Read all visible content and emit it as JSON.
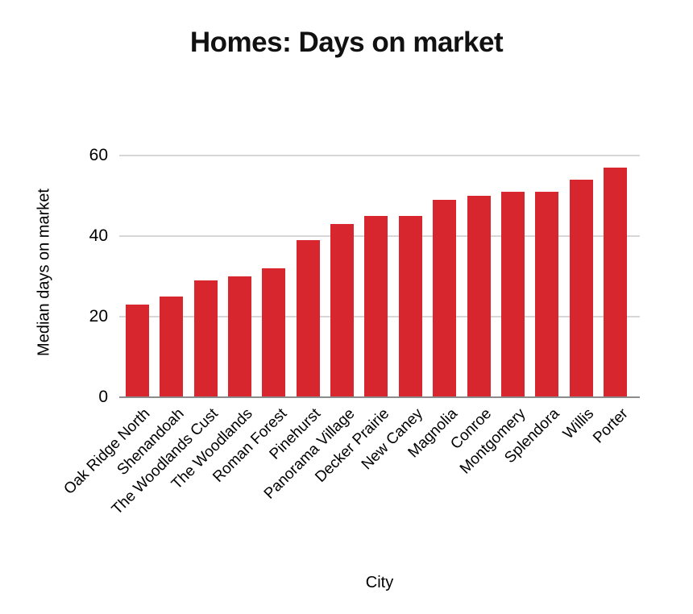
{
  "chart_data": {
    "type": "bar",
    "title": "Homes: Days on market",
    "xlabel": "City",
    "ylabel": "Median days on market",
    "categories": [
      "Oak Ridge North",
      "Shenandoah",
      "The Woodlands Cust",
      "The Woodlands",
      "Roman Forest",
      "Pinehurst",
      "Panorama Village",
      "Decker Prairie",
      "New Caney",
      "Magnolia",
      "Conroe",
      "Montgomery",
      "Splendora",
      "Willis",
      "Porter"
    ],
    "values": [
      23,
      25,
      29,
      30,
      32,
      39,
      43,
      45,
      45,
      49,
      50,
      51,
      51,
      54,
      57
    ],
    "yticks": [
      0,
      20,
      40,
      60
    ],
    "ylim": [
      0,
      62
    ],
    "grid": "horizontal",
    "legend": "none",
    "x_label_rotation_deg": 45,
    "bar_color": "#d7262d",
    "gridline_color": "#d7d7d7",
    "axis_line_color": "#8c8c8c",
    "label_color": "#000000",
    "title_color": "#111111"
  }
}
